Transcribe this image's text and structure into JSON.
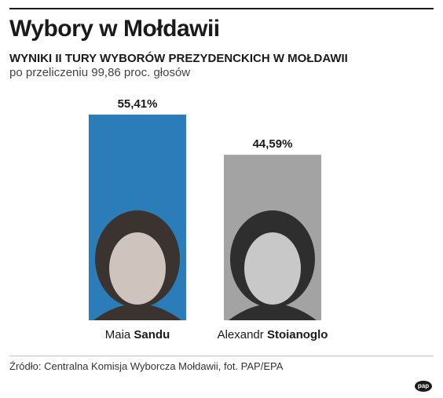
{
  "header": {
    "title": "Wybory w Mołdawii",
    "subtitle": "WYNIKI II TURY WYBORÓW PREZYDENCKICH W MOŁDAWII",
    "note": "po przeliczeniu 99,86 proc. głosów"
  },
  "chart_data": {
    "type": "bar",
    "categories": [
      "Maia Sandu",
      "Alexandr Stoianoglo"
    ],
    "values": [
      55.41,
      44.59
    ],
    "data_labels": [
      "55,41%",
      "44,59%"
    ],
    "name_parts": [
      {
        "first": "Maia",
        "last": "Sandu"
      },
      {
        "first": "Alexandr",
        "last": "Stoianoglo"
      }
    ],
    "colors": [
      "#2a7db8",
      "#a3a3a3"
    ],
    "xlabel": "",
    "ylabel": "",
    "ylim": [
      0,
      55.41
    ],
    "grid": false,
    "legend": "none"
  },
  "footer": {
    "source": "Źródło: Centralna Komisja Wyborcza Mołdawii, fot. PAP/EPA",
    "logo": "pap"
  }
}
